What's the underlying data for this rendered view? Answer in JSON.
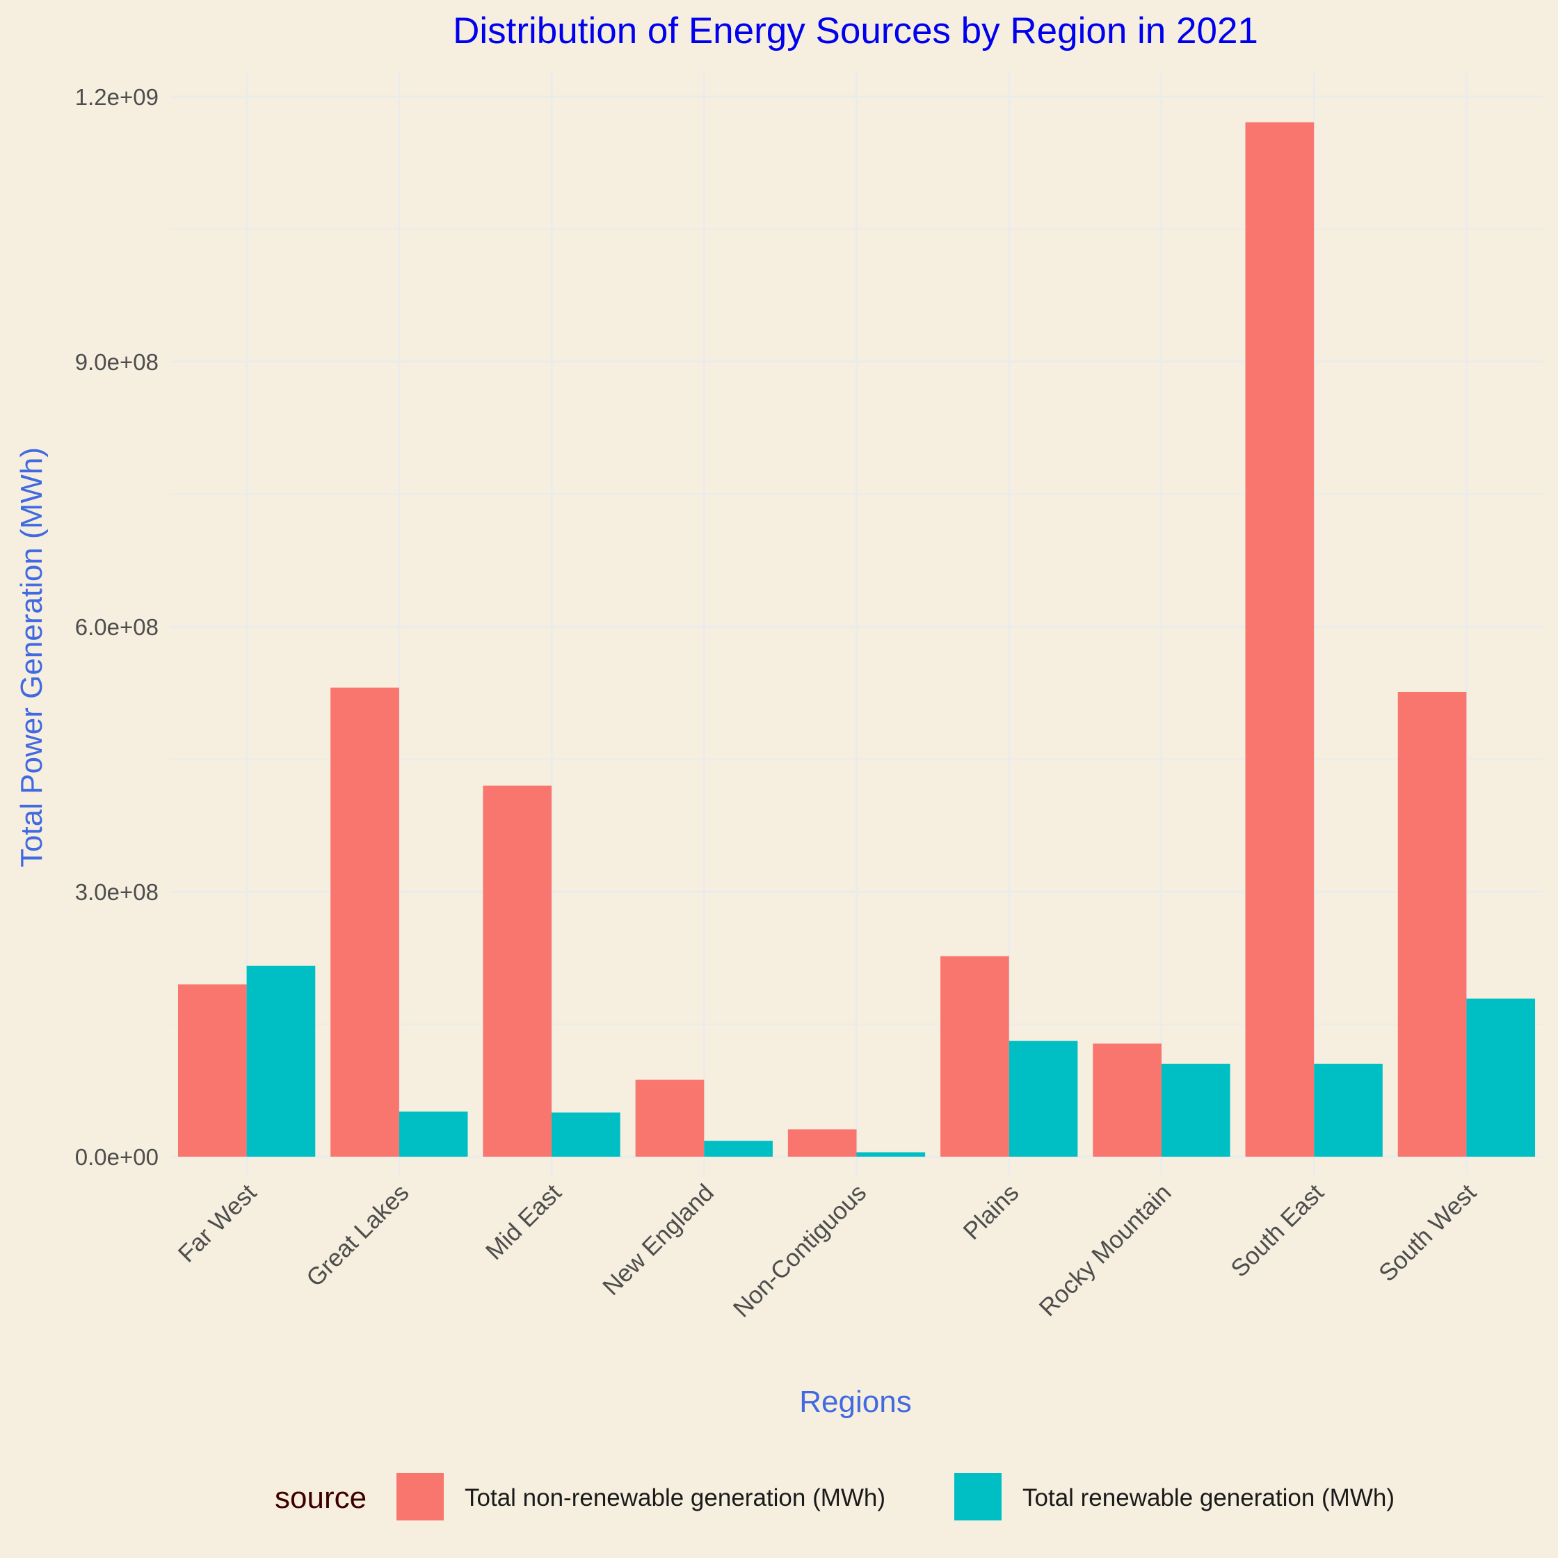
{
  "chart_data": {
    "type": "bar",
    "title": "Distribution of Energy Sources by Region in 2021",
    "xlabel": "Regions",
    "ylabel": "Total Power Generation (MWh)",
    "ylim": [
      -20000000,
      1230000000
    ],
    "yticks": [
      0,
      300000000,
      600000000,
      900000000,
      1200000000
    ],
    "ytick_labels": [
      "0.0e+00",
      "3.0e+08",
      "6.0e+08",
      "9.0e+08",
      "1.2e+09"
    ],
    "minor_yticks": [
      150000000,
      450000000,
      750000000,
      1050000000
    ],
    "grid": true,
    "legend_position": "bottom",
    "legend_title": "source",
    "categories": [
      "Far West",
      "Great Lakes",
      "Mid East",
      "New England",
      "Non-Contiguous",
      "Plains",
      "Rocky Mountain",
      "South East",
      "South West"
    ],
    "series": [
      {
        "name": "Total non-renewable generation (MWh)",
        "color": "#f8766d",
        "values": [
          195000000,
          531000000,
          420000000,
          87000000,
          31000000,
          227000000,
          128000000,
          1171000000,
          526000000
        ]
      },
      {
        "name": "Total renewable generation (MWh)",
        "color": "#00bfc4",
        "values": [
          216000000,
          51000000,
          50000000,
          18000000,
          5000000,
          131000000,
          105000000,
          105000000,
          179000000
        ]
      }
    ]
  }
}
